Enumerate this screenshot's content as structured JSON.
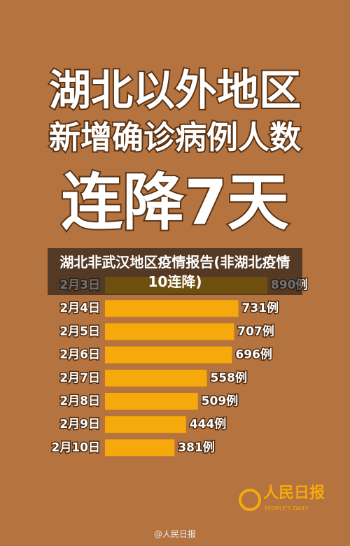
{
  "chart_data": {
    "type": "bar",
    "orientation": "horizontal",
    "title_lines": [
      "湖北以外地区",
      "新增确诊病例人数",
      "连降7天"
    ],
    "banner": "湖北非武汉地区疫情报告(非湖北疫情10连降)",
    "categories": [
      "2月3日",
      "2月4日",
      "2月5日",
      "2月6日",
      "2月7日",
      "2月8日",
      "2月9日",
      "2月10日"
    ],
    "values": [
      890,
      731,
      707,
      696,
      558,
      509,
      444,
      381
    ],
    "value_labels": [
      "890例",
      "731例",
      "707例",
      "696例",
      "558例",
      "509例",
      "444例",
      "381例"
    ],
    "color": "#f6a90a"
  },
  "logo": {
    "name": "人民日报",
    "subtitle": "PEOPLE'S DAILY"
  },
  "watermark": "@人民日报"
}
